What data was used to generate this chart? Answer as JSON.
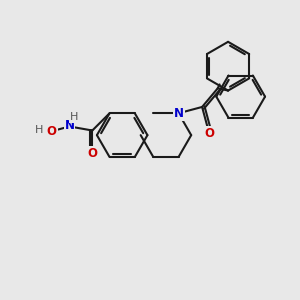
{
  "bg_color": "#e8e8e8",
  "bond_color": "#1a1a1a",
  "N_color": "#0000cc",
  "O_color": "#cc0000",
  "H_color": "#555555",
  "line_width": 1.5,
  "figsize": [
    3.0,
    3.0
  ],
  "dpi": 100,
  "xlim": [
    0,
    10
  ],
  "ylim": [
    0,
    10
  ],
  "ring_r": 0.85
}
